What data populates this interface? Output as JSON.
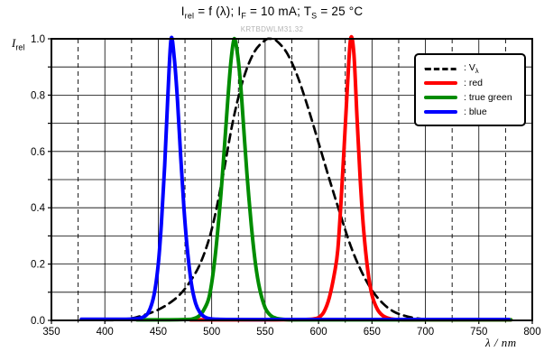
{
  "title": {
    "p1": "I",
    "s1": "rel",
    "p2": " = f (λ); I",
    "s2": "F",
    "p3": " = 10 mA; T",
    "s3": "S",
    "p4": " = 25 °C"
  },
  "watermark": "KRTBDWLM31.32",
  "y_axis_label": {
    "base": "I",
    "sub": "rel"
  },
  "x_axis_label": "λ / nm",
  "legend": {
    "items": [
      {
        "label": ": V",
        "label_sub": "λ",
        "color": "#000000",
        "dashed": true
      },
      {
        "label": ": red",
        "label_sub": "",
        "color": "#ff0000",
        "dashed": false
      },
      {
        "label": ": true green",
        "label_sub": "",
        "color": "#008c00",
        "dashed": false
      },
      {
        "label": ": blue",
        "label_sub": "",
        "color": "#0000ff",
        "dashed": false
      }
    ]
  },
  "chart_data": {
    "type": "line",
    "title": "Irel = f (λ); IF = 10 mA; TS = 25 °C",
    "xlabel": "λ / nm",
    "ylabel": "Irel",
    "xlim": [
      350,
      800
    ],
    "ylim": [
      0,
      1
    ],
    "grid": {
      "x_major_step": 50,
      "x_minor_step": 25,
      "y_step": 0.1,
      "x_minor_style": "dashed"
    },
    "legend_position": "top-right",
    "x_ticks": [
      350,
      400,
      450,
      500,
      550,
      600,
      650,
      700,
      750,
      800
    ],
    "y_ticks": [
      0.0,
      0.2,
      0.4,
      0.6,
      0.8,
      1.0
    ],
    "y_tick_labels": [
      "0.0",
      "0.2",
      "0.4",
      "0.6",
      "0.8",
      "1.0"
    ],
    "series": [
      {
        "name": "Vλ",
        "color": "#000000",
        "dashed": true,
        "width": 2.7,
        "points": [
          [
            400,
            0.0004
          ],
          [
            410,
            0.0012
          ],
          [
            420,
            0.004
          ],
          [
            430,
            0.0116
          ],
          [
            440,
            0.023
          ],
          [
            450,
            0.038
          ],
          [
            460,
            0.06
          ],
          [
            470,
            0.091
          ],
          [
            480,
            0.139
          ],
          [
            490,
            0.208
          ],
          [
            500,
            0.323
          ],
          [
            510,
            0.503
          ],
          [
            520,
            0.71
          ],
          [
            530,
            0.862
          ],
          [
            540,
            0.954
          ],
          [
            550,
            0.995
          ],
          [
            555,
            1.0
          ],
          [
            560,
            0.995
          ],
          [
            570,
            0.952
          ],
          [
            580,
            0.87
          ],
          [
            590,
            0.757
          ],
          [
            600,
            0.631
          ],
          [
            610,
            0.503
          ],
          [
            620,
            0.381
          ],
          [
            630,
            0.265
          ],
          [
            640,
            0.175
          ],
          [
            650,
            0.107
          ],
          [
            660,
            0.061
          ],
          [
            670,
            0.032
          ],
          [
            680,
            0.017
          ],
          [
            690,
            0.0082
          ],
          [
            700,
            0.0041
          ],
          [
            710,
            0.002
          ],
          [
            720,
            0.001
          ]
        ]
      },
      {
        "name": "red",
        "color": "#ff0000",
        "dashed": false,
        "width": 4,
        "points": [
          [
            480,
            0.002
          ],
          [
            520,
            0.002
          ],
          [
            560,
            0.002
          ],
          [
            585,
            0.003
          ],
          [
            595,
            0.005
          ],
          [
            600,
            0.01
          ],
          [
            605,
            0.03
          ],
          [
            610,
            0.08
          ],
          [
            615,
            0.17
          ],
          [
            618,
            0.25
          ],
          [
            621,
            0.42
          ],
          [
            624,
            0.62
          ],
          [
            627,
            0.83
          ],
          [
            630,
            1.0
          ],
          [
            633,
            0.95
          ],
          [
            636,
            0.72
          ],
          [
            639,
            0.5
          ],
          [
            642,
            0.33
          ],
          [
            646,
            0.18
          ],
          [
            650,
            0.09
          ],
          [
            655,
            0.04
          ],
          [
            660,
            0.017
          ],
          [
            665,
            0.008
          ],
          [
            670,
            0.004
          ],
          [
            680,
            0.002
          ],
          [
            700,
            0.002
          ],
          [
            730,
            0.002
          ],
          [
            760,
            0.002
          ],
          [
            780,
            0.002
          ]
        ]
      },
      {
        "name": "true green",
        "color": "#008c00",
        "dashed": false,
        "width": 4,
        "points": [
          [
            430,
            0.002
          ],
          [
            460,
            0.002
          ],
          [
            475,
            0.003
          ],
          [
            482,
            0.005
          ],
          [
            488,
            0.015
          ],
          [
            493,
            0.04
          ],
          [
            498,
            0.09
          ],
          [
            503,
            0.22
          ],
          [
            508,
            0.42
          ],
          [
            512,
            0.62
          ],
          [
            515,
            0.78
          ],
          [
            518,
            0.92
          ],
          [
            521,
            1.0
          ],
          [
            524,
            0.95
          ],
          [
            527,
            0.84
          ],
          [
            530,
            0.68
          ],
          [
            533,
            0.52
          ],
          [
            537,
            0.34
          ],
          [
            541,
            0.2
          ],
          [
            545,
            0.11
          ],
          [
            550,
            0.045
          ],
          [
            555,
            0.018
          ],
          [
            560,
            0.008
          ],
          [
            566,
            0.004
          ],
          [
            575,
            0.002
          ],
          [
            600,
            0.002
          ],
          [
            640,
            0.002
          ],
          [
            680,
            0.002
          ],
          [
            720,
            0.002
          ],
          [
            760,
            0.002
          ],
          [
            780,
            0.002
          ]
        ]
      },
      {
        "name": "blue",
        "color": "#0000ff",
        "dashed": false,
        "width": 4,
        "points": [
          [
            378,
            0.004
          ],
          [
            400,
            0.004
          ],
          [
            420,
            0.004
          ],
          [
            430,
            0.006
          ],
          [
            436,
            0.012
          ],
          [
            441,
            0.03
          ],
          [
            446,
            0.09
          ],
          [
            450,
            0.2
          ],
          [
            453,
            0.35
          ],
          [
            456,
            0.55
          ],
          [
            459,
            0.8
          ],
          [
            462,
            1.0
          ],
          [
            465,
            0.93
          ],
          [
            468,
            0.78
          ],
          [
            471,
            0.58
          ],
          [
            474,
            0.4
          ],
          [
            477,
            0.26
          ],
          [
            481,
            0.13
          ],
          [
            485,
            0.06
          ],
          [
            489,
            0.028
          ],
          [
            493,
            0.013
          ],
          [
            498,
            0.006
          ],
          [
            505,
            0.004
          ],
          [
            520,
            0.003
          ],
          [
            560,
            0.003
          ],
          [
            600,
            0.003
          ],
          [
            650,
            0.003
          ],
          [
            700,
            0.003
          ],
          [
            740,
            0.003
          ],
          [
            778,
            0.003
          ]
        ]
      }
    ]
  }
}
